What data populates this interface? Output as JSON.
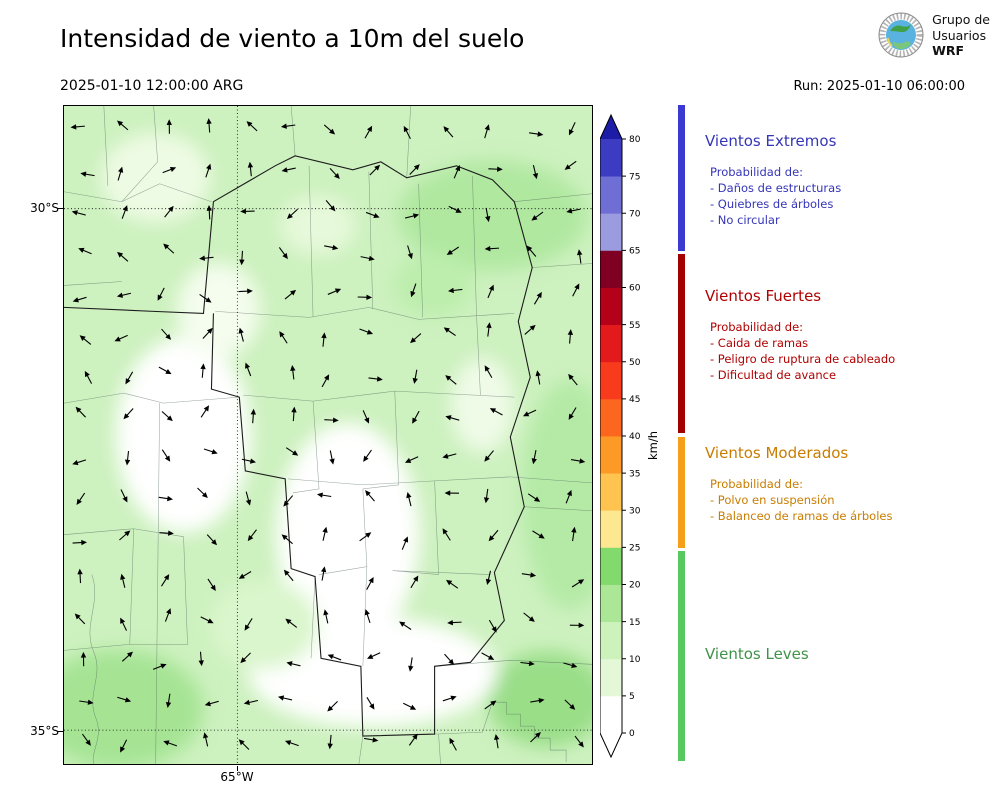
{
  "header": {
    "title": "Intensidad de viento a 10m del suelo",
    "datetime": "2025-01-10 12:00:00 ARG",
    "run_label": "Run: 2025-01-10 06:00:00",
    "logo": {
      "line1": "Grupo de",
      "line2": "Usuarios",
      "line3": "WRF"
    }
  },
  "map": {
    "lat_labels": [
      "30°S",
      "35°S"
    ],
    "lon_label": "65°W"
  },
  "colorbar": {
    "unit": "km/h",
    "ticks": [
      0,
      5,
      10,
      15,
      20,
      25,
      30,
      35,
      40,
      45,
      50,
      55,
      60,
      65,
      70,
      75,
      80
    ],
    "segments": [
      {
        "from": 0,
        "to": 5,
        "color": "#ffffff"
      },
      {
        "from": 5,
        "to": 10,
        "color": "#e4f8d8"
      },
      {
        "from": 10,
        "to": 15,
        "color": "#cdf2bc"
      },
      {
        "from": 15,
        "to": 20,
        "color": "#abe796"
      },
      {
        "from": 20,
        "to": 25,
        "color": "#82d96c"
      },
      {
        "from": 25,
        "to": 30,
        "color": "#fee791"
      },
      {
        "from": 30,
        "to": 35,
        "color": "#fec44f"
      },
      {
        "from": 35,
        "to": 40,
        "color": "#fd9a27"
      },
      {
        "from": 40,
        "to": 45,
        "color": "#fc661f"
      },
      {
        "from": 45,
        "to": 50,
        "color": "#f83b1c"
      },
      {
        "from": 50,
        "to": 55,
        "color": "#e31a1c"
      },
      {
        "from": 55,
        "to": 60,
        "color": "#b50019"
      },
      {
        "from": 60,
        "to": 65,
        "color": "#7f0022"
      },
      {
        "from": 65,
        "to": 70,
        "color": "#9b9be0"
      },
      {
        "from": 70,
        "to": 75,
        "color": "#6e6ed4"
      },
      {
        "from": 75,
        "to": 80,
        "color": "#3c3cc3"
      }
    ],
    "extend_over_color": "#1c1ca6",
    "extend_under_color": "#ffffff"
  },
  "legend": {
    "categories": [
      {
        "name": "Vientos Extremos",
        "text_color": "#3535b8",
        "strip_color": "#3a3ad0",
        "subtitle": "Probabilidad de:",
        "items": [
          "- Daños de estructuras",
          "- Quiebres de árboles",
          "- No circular"
        ]
      },
      {
        "name": "Vientos Fuertes",
        "text_color": "#b00000",
        "strip_color": "#a30000",
        "subtitle": "Probabilidad de:",
        "items": [
          "- Caida de ramas",
          "- Peligro de ruptura de cableado",
          "- Dificultad de avance"
        ]
      },
      {
        "name": "Vientos Moderados",
        "text_color": "#c87d00",
        "strip_color": "#f59f1a",
        "subtitle": "Probabilidad de:",
        "items": [
          "- Polvo en suspensión",
          "- Balanceo de ramas de árboles"
        ]
      },
      {
        "name": "Vientos Leves",
        "text_color": "#3f9248",
        "strip_color": "#58c95e",
        "subtitle": "",
        "items": []
      }
    ]
  }
}
